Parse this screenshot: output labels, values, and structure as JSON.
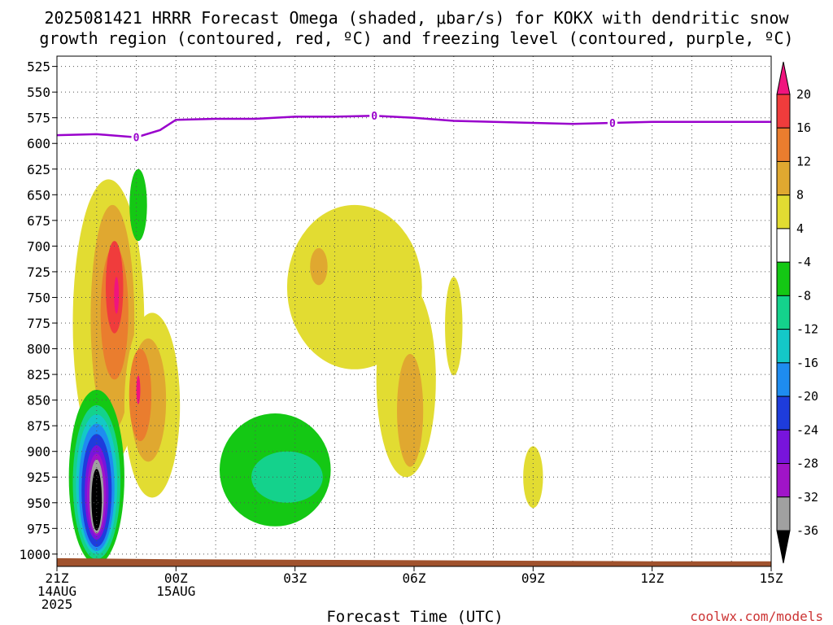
{
  "title_line1": "2025081421 HRRR Forecast Omega (shaded, μbar/s) for KOKX with dendritic snow",
  "title_line2": "growth region (contoured, red, ºC) and freezing level (contoured, purple, ºC)",
  "credit": "coolwx.com/models",
  "colors": {
    "freezing_line": "#9900cc",
    "ground": "#a0522d",
    "grid": "#555555"
  },
  "chart_data": {
    "type": "heatmap",
    "xlabel": "Forecast Time (UTC)",
    "ylabel": "",
    "x_hours_range": [
      0,
      18
    ],
    "x_ticks": [
      {
        "hour": 0,
        "lines": [
          "21Z",
          "14AUG",
          "2025"
        ]
      },
      {
        "hour": 3,
        "lines": [
          "00Z",
          "15AUG"
        ]
      },
      {
        "hour": 6,
        "lines": [
          "03Z"
        ]
      },
      {
        "hour": 9,
        "lines": [
          "06Z"
        ]
      },
      {
        "hour": 12,
        "lines": [
          "09Z"
        ]
      },
      {
        "hour": 15,
        "lines": [
          "12Z"
        ]
      },
      {
        "hour": 18,
        "lines": [
          "15Z"
        ]
      }
    ],
    "y_axis_pressure_hPa": [
      525,
      550,
      575,
      600,
      625,
      650,
      675,
      700,
      725,
      750,
      775,
      800,
      825,
      850,
      875,
      900,
      925,
      950,
      975,
      1000
    ],
    "y_range_hPa": [
      515,
      1012
    ],
    "colorbar": {
      "unit": "μbar/s",
      "labels": [
        "20",
        "16",
        "12",
        "8",
        "4",
        "-4",
        "-8",
        "-12",
        "-16",
        "-20",
        "-24",
        "-28",
        "-32",
        "-36"
      ],
      "bins": [
        {
          "range": [
            20,
            24
          ],
          "color": "#f0147e"
        },
        {
          "range": [
            16,
            20
          ],
          "color": "#f03c3c"
        },
        {
          "range": [
            12,
            16
          ],
          "color": "#ea7d2e"
        },
        {
          "range": [
            8,
            12
          ],
          "color": "#e0a830"
        },
        {
          "range": [
            4,
            8
          ],
          "color": "#e2dc32"
        },
        {
          "range": [
            -4,
            4
          ],
          "color": "#ffffff"
        },
        {
          "range": [
            -8,
            -4
          ],
          "color": "#14c814"
        },
        {
          "range": [
            -12,
            -8
          ],
          "color": "#14d28c"
        },
        {
          "range": [
            -16,
            -12
          ],
          "color": "#14c8c8"
        },
        {
          "range": [
            -20,
            -16
          ],
          "color": "#1e8cf0"
        },
        {
          "range": [
            -24,
            -20
          ],
          "color": "#1e3cdc"
        },
        {
          "range": [
            -28,
            -24
          ],
          "color": "#7814dc"
        },
        {
          "range": [
            -32,
            -28
          ],
          "color": "#a014c8"
        },
        {
          "range": [
            -36,
            -32
          ],
          "color": "#a0a0a0"
        },
        {
          "range": [
            -40,
            -36
          ],
          "color": "#000000"
        }
      ]
    },
    "freezing_level": {
      "label": "0",
      "points": [
        [
          0,
          592
        ],
        [
          1,
          591
        ],
        [
          2,
          594
        ],
        [
          2.6,
          587
        ],
        [
          3.0,
          577
        ],
        [
          4,
          576
        ],
        [
          5,
          576
        ],
        [
          6,
          574
        ],
        [
          7,
          574
        ],
        [
          8,
          573
        ],
        [
          9,
          575
        ],
        [
          10,
          578
        ],
        [
          11,
          579
        ],
        [
          12,
          580
        ],
        [
          13,
          581
        ],
        [
          14,
          580
        ],
        [
          15,
          579
        ],
        [
          16,
          579
        ],
        [
          17,
          579
        ],
        [
          18,
          579
        ]
      ],
      "label_at_hours": [
        2,
        8,
        14
      ]
    },
    "omega_regions": [
      {
        "value": 6,
        "center": [
          1.3,
          775
        ],
        "rx": 0.9,
        "ry": 140
      },
      {
        "value": 10,
        "center": [
          1.4,
          770
        ],
        "rx": 0.55,
        "ry": 110
      },
      {
        "value": 14,
        "center": [
          1.45,
          765
        ],
        "rx": 0.35,
        "ry": 65
      },
      {
        "value": 18,
        "center": [
          1.45,
          740
        ],
        "rx": 0.22,
        "ry": 45
      },
      {
        "value": 22,
        "center": [
          1.5,
          748
        ],
        "rx": 0.06,
        "ry": 18
      },
      {
        "value": 6,
        "center": [
          2.4,
          855
        ],
        "rx": 0.7,
        "ry": 90
      },
      {
        "value": 10,
        "center": [
          2.3,
          850
        ],
        "rx": 0.45,
        "ry": 60
      },
      {
        "value": 14,
        "center": [
          2.1,
          845
        ],
        "rx": 0.28,
        "ry": 45
      },
      {
        "value": 22,
        "center": [
          2.05,
          840
        ],
        "rx": 0.05,
        "ry": 14
      },
      {
        "value": -6,
        "center": [
          2.05,
          660
        ],
        "rx": 0.22,
        "ry": 35
      },
      {
        "value": -6,
        "center": [
          1.0,
          925
        ],
        "rx": 0.7,
        "ry": 85
      },
      {
        "value": -10,
        "center": [
          1.0,
          930
        ],
        "rx": 0.6,
        "ry": 75
      },
      {
        "value": -14,
        "center": [
          1.0,
          932
        ],
        "rx": 0.52,
        "ry": 68
      },
      {
        "value": -18,
        "center": [
          1.0,
          935
        ],
        "rx": 0.45,
        "ry": 62
      },
      {
        "value": -22,
        "center": [
          1.0,
          938
        ],
        "rx": 0.38,
        "ry": 55
      },
      {
        "value": -26,
        "center": [
          1.0,
          940
        ],
        "rx": 0.3,
        "ry": 46
      },
      {
        "value": -30,
        "center": [
          1.0,
          942
        ],
        "rx": 0.24,
        "ry": 40
      },
      {
        "value": -34,
        "center": [
          1.0,
          944
        ],
        "rx": 0.18,
        "ry": 36
      },
      {
        "value": -38,
        "center": [
          1.0,
          947
        ],
        "rx": 0.13,
        "ry": 30
      },
      {
        "value": -6,
        "center": [
          5.5,
          918
        ],
        "rx": 1.4,
        "ry": 55
      },
      {
        "value": -10,
        "center": [
          5.8,
          925
        ],
        "rx": 0.9,
        "ry": 25
      },
      {
        "value": 6,
        "center": [
          7.5,
          740
        ],
        "rx": 1.7,
        "ry": 80
      },
      {
        "value": 6,
        "center": [
          8.8,
          830
        ],
        "rx": 0.75,
        "ry": 95
      },
      {
        "value": 10,
        "center": [
          8.9,
          860
        ],
        "rx": 0.33,
        "ry": 55
      },
      {
        "value": 10,
        "center": [
          6.6,
          720
        ],
        "rx": 0.22,
        "ry": 18
      },
      {
        "value": 6,
        "center": [
          10.0,
          778
        ],
        "rx": 0.22,
        "ry": 48
      },
      {
        "value": 6,
        "center": [
          12.0,
          925
        ],
        "rx": 0.25,
        "ry": 30
      }
    ],
    "ground_surface_hPa": [
      [
        0,
        1004
      ],
      [
        3,
        1005
      ],
      [
        9,
        1006
      ],
      [
        15,
        1007
      ],
      [
        18,
        1007
      ]
    ]
  }
}
